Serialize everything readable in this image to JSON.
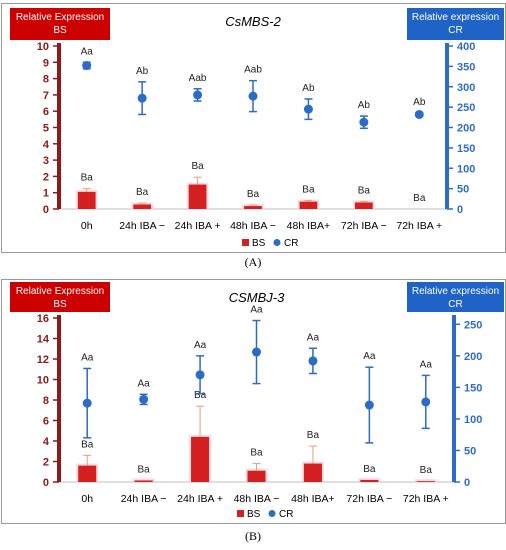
{
  "captions": [
    "(A)",
    "(B)"
  ],
  "colors": {
    "bs": "#d42020",
    "cr": "#2b6cc4",
    "bs_err": "#e8a070",
    "cr_axis": "#2f6cc8",
    "bs_axis": "#8b1a1a",
    "bs_header": "#cc0000",
    "cr_header": "#1f63c6",
    "bs_glow": "#f3c7cf"
  },
  "chart_data": [
    {
      "type": "bar",
      "title": "CsMBS-2",
      "left_header": [
        "Relative Expression",
        "BS"
      ],
      "right_header": [
        "Relative expression",
        "CR"
      ],
      "categories": [
        "0h",
        "24h IBA −",
        "24h IBA +",
        "48h IBA −",
        "48h IBA+",
        "72h IBA −",
        "72h IBA +"
      ],
      "left_axis": {
        "min": 0,
        "max": 10,
        "ticks": [
          "0",
          "1",
          "2",
          "3",
          "4",
          "5",
          "6",
          "7",
          "8",
          "9",
          "10"
        ]
      },
      "right_axis": {
        "min": 0,
        "max": 400,
        "ticks": [
          "0",
          "50",
          "100",
          "150",
          "200",
          "250",
          "300",
          "350",
          "400"
        ]
      },
      "series": [
        {
          "name": "BS",
          "type": "bar",
          "axis": "left",
          "values": [
            1.05,
            0.28,
            1.5,
            0.18,
            0.45,
            0.4,
            0
          ],
          "errors": [
            0.2,
            0.08,
            0.45,
            0.06,
            0.08,
            0.07,
            0
          ],
          "labels": [
            "Ba",
            "Ba",
            "Ba",
            "Ba",
            "Ba",
            "Ba",
            "Ba"
          ]
        },
        {
          "name": "CR",
          "type": "scatter",
          "axis": "right",
          "values": [
            352,
            272,
            280,
            277,
            245,
            213,
            232
          ],
          "errors": [
            8,
            40,
            15,
            38,
            25,
            15,
            4
          ],
          "labels": [
            "Aa",
            "Ab",
            "Aab",
            "Aab",
            "Ab",
            "Ab",
            "Ab"
          ]
        }
      ],
      "legend": [
        "BS",
        "CR"
      ]
    },
    {
      "type": "bar",
      "title": "CSMBJ-3",
      "left_header": [
        "Relative Expression",
        "BS"
      ],
      "right_header": [
        "Relative expression",
        "CR"
      ],
      "categories": [
        "0h",
        "24h IBA −",
        "24h IBA +",
        "48h IBA −",
        "48h IBA+",
        "72h IBA −",
        "72h IBA +"
      ],
      "left_axis": {
        "min": 0,
        "max": 16,
        "ticks": [
          "0",
          "2",
          "4",
          "6",
          "8",
          "10",
          "12",
          "14",
          "16"
        ]
      },
      "right_axis": {
        "min": 0,
        "max": 260,
        "ticks": [
          "0",
          "50",
          "100",
          "150",
          "200",
          "250"
        ]
      },
      "series": [
        {
          "name": "BS",
          "type": "bar",
          "axis": "left",
          "values": [
            1.6,
            0.15,
            4.4,
            1.1,
            1.8,
            0.2,
            0.08
          ],
          "errors": [
            1.0,
            0,
            3.0,
            0.7,
            1.7,
            0,
            0
          ],
          "labels": [
            "Ba",
            "Ba",
            "Ba",
            "Ba",
            "Ba",
            "Ba",
            "Ba"
          ]
        },
        {
          "name": "CR",
          "type": "scatter",
          "axis": "right",
          "values": [
            125,
            131,
            170,
            206,
            192,
            122,
            127
          ],
          "errors": [
            55,
            8,
            30,
            50,
            20,
            60,
            42
          ],
          "labels": [
            "Aa",
            "Aa",
            "Aa",
            "Aa",
            "Aa",
            "Aa",
            "Aa"
          ]
        }
      ],
      "legend": [
        "BS",
        "CR"
      ]
    }
  ]
}
